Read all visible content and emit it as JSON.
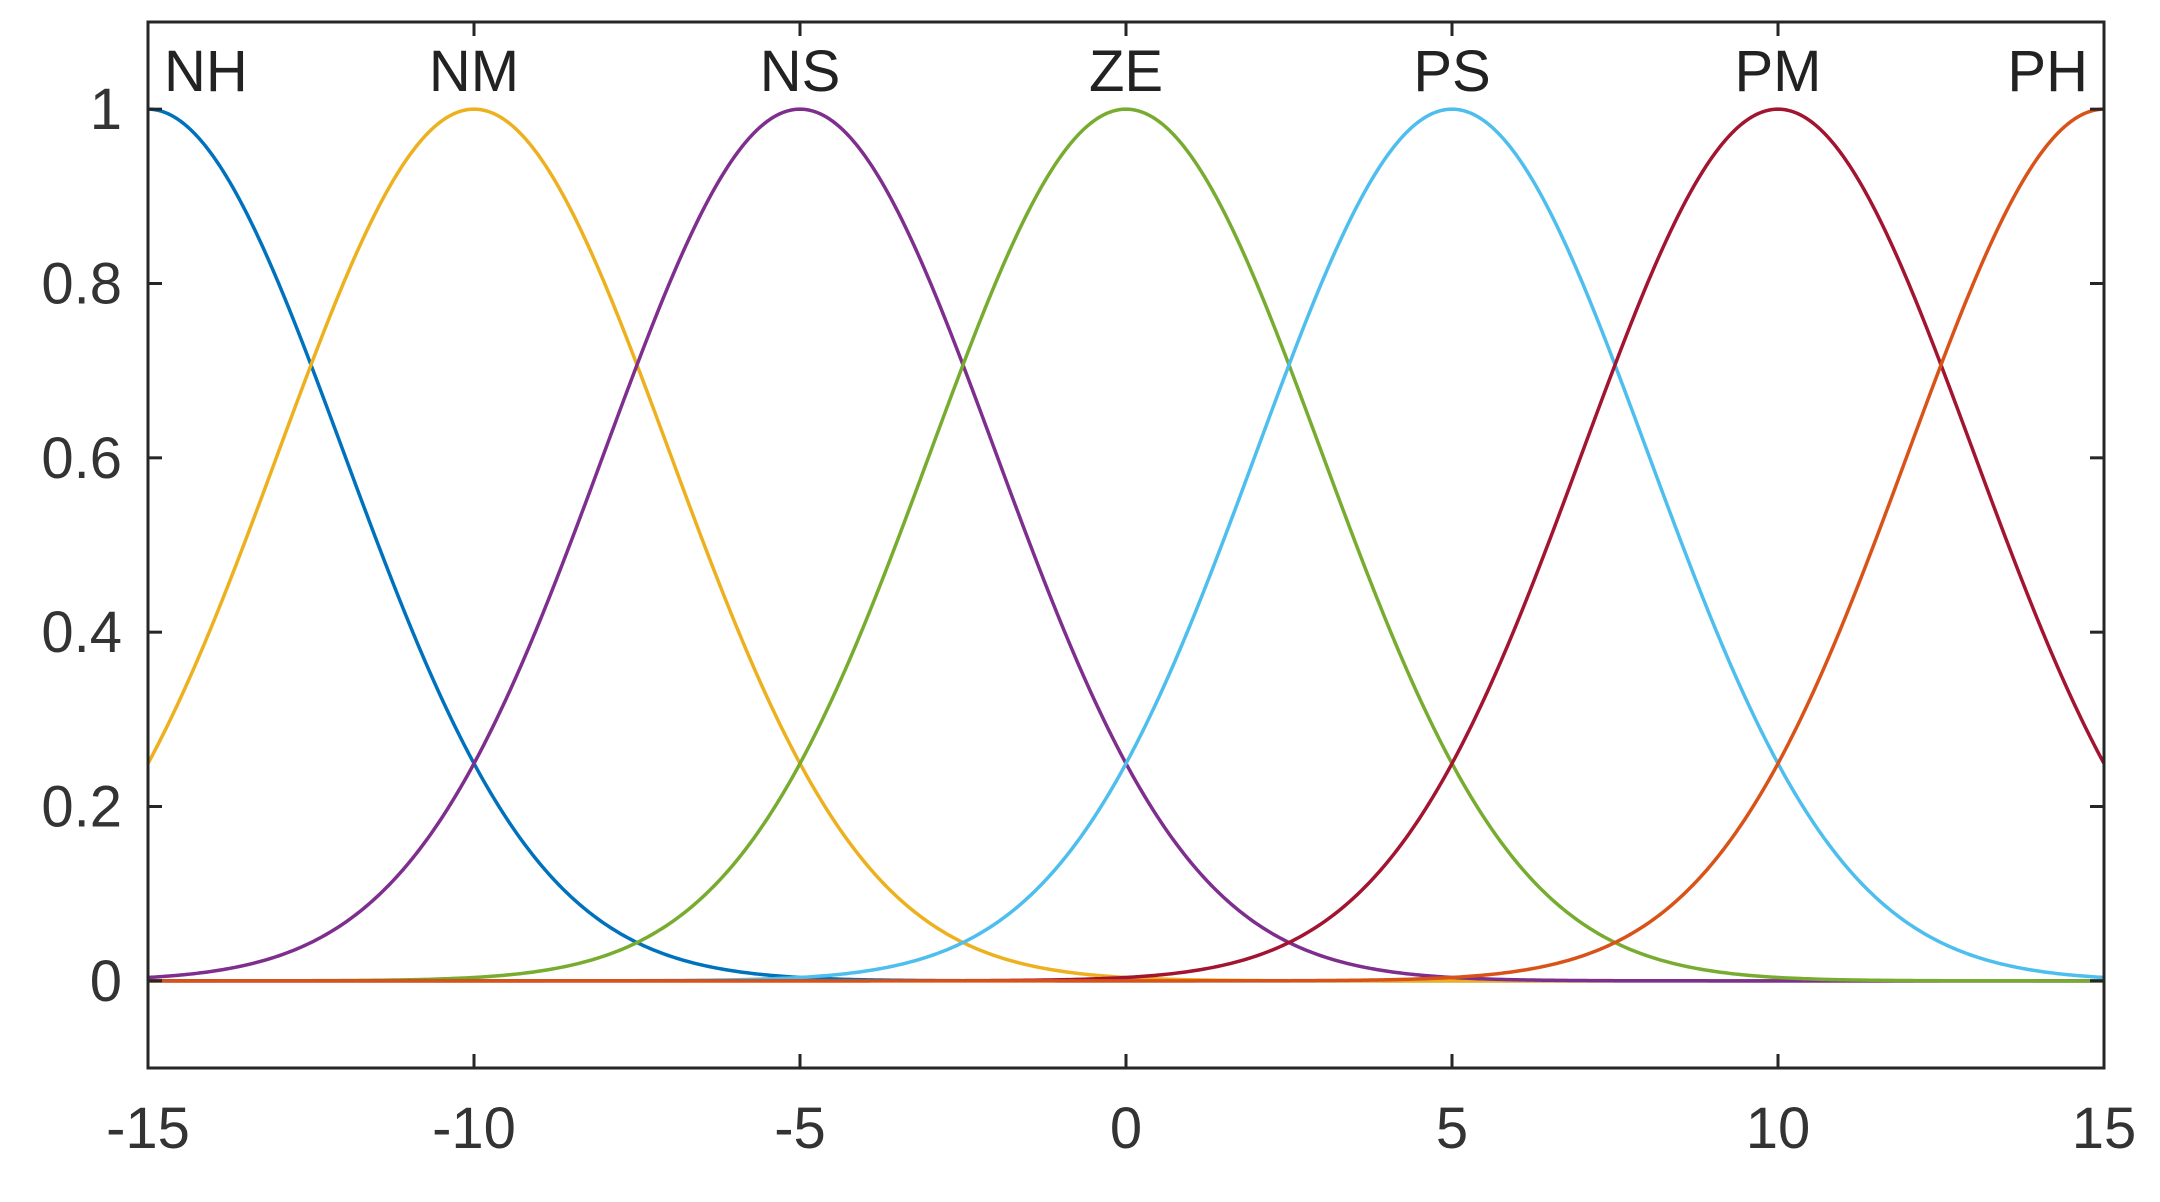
{
  "chart_data": {
    "type": "line",
    "title": "",
    "xlabel": "",
    "ylabel": "",
    "xlim": [
      -15,
      15
    ],
    "ylim": [
      -0.1,
      1.1
    ],
    "x_ticks": [
      -15,
      -10,
      -5,
      0,
      5,
      10,
      15
    ],
    "x_tick_labels": [
      "-15",
      "-10",
      "-5",
      "0",
      "5",
      "10",
      "15"
    ],
    "y_ticks": [
      0,
      0.2,
      0.4,
      0.6,
      0.8,
      1
    ],
    "y_tick_labels": [
      "0",
      "0.2",
      "0.4",
      "0.6",
      "0.8",
      "1"
    ],
    "grid": false,
    "legend": "none",
    "curve_shape": "gaussian",
    "sigma": 3,
    "series": [
      {
        "name": "NH",
        "center": -15,
        "color": "#0072bd"
      },
      {
        "name": "NM",
        "center": -10,
        "color": "#edb120"
      },
      {
        "name": "NS",
        "center": -5,
        "color": "#7e2f8e"
      },
      {
        "name": "ZE",
        "center": 0,
        "color": "#77ac30"
      },
      {
        "name": "PS",
        "center": 5,
        "color": "#4dbeee"
      },
      {
        "name": "PM",
        "center": 10,
        "color": "#a2142f"
      },
      {
        "name": "PH",
        "center": 15,
        "color": "#d95319"
      }
    ]
  },
  "colors": {
    "axis": "#262626",
    "tick_text": "#333333",
    "background": "#ffffff"
  }
}
